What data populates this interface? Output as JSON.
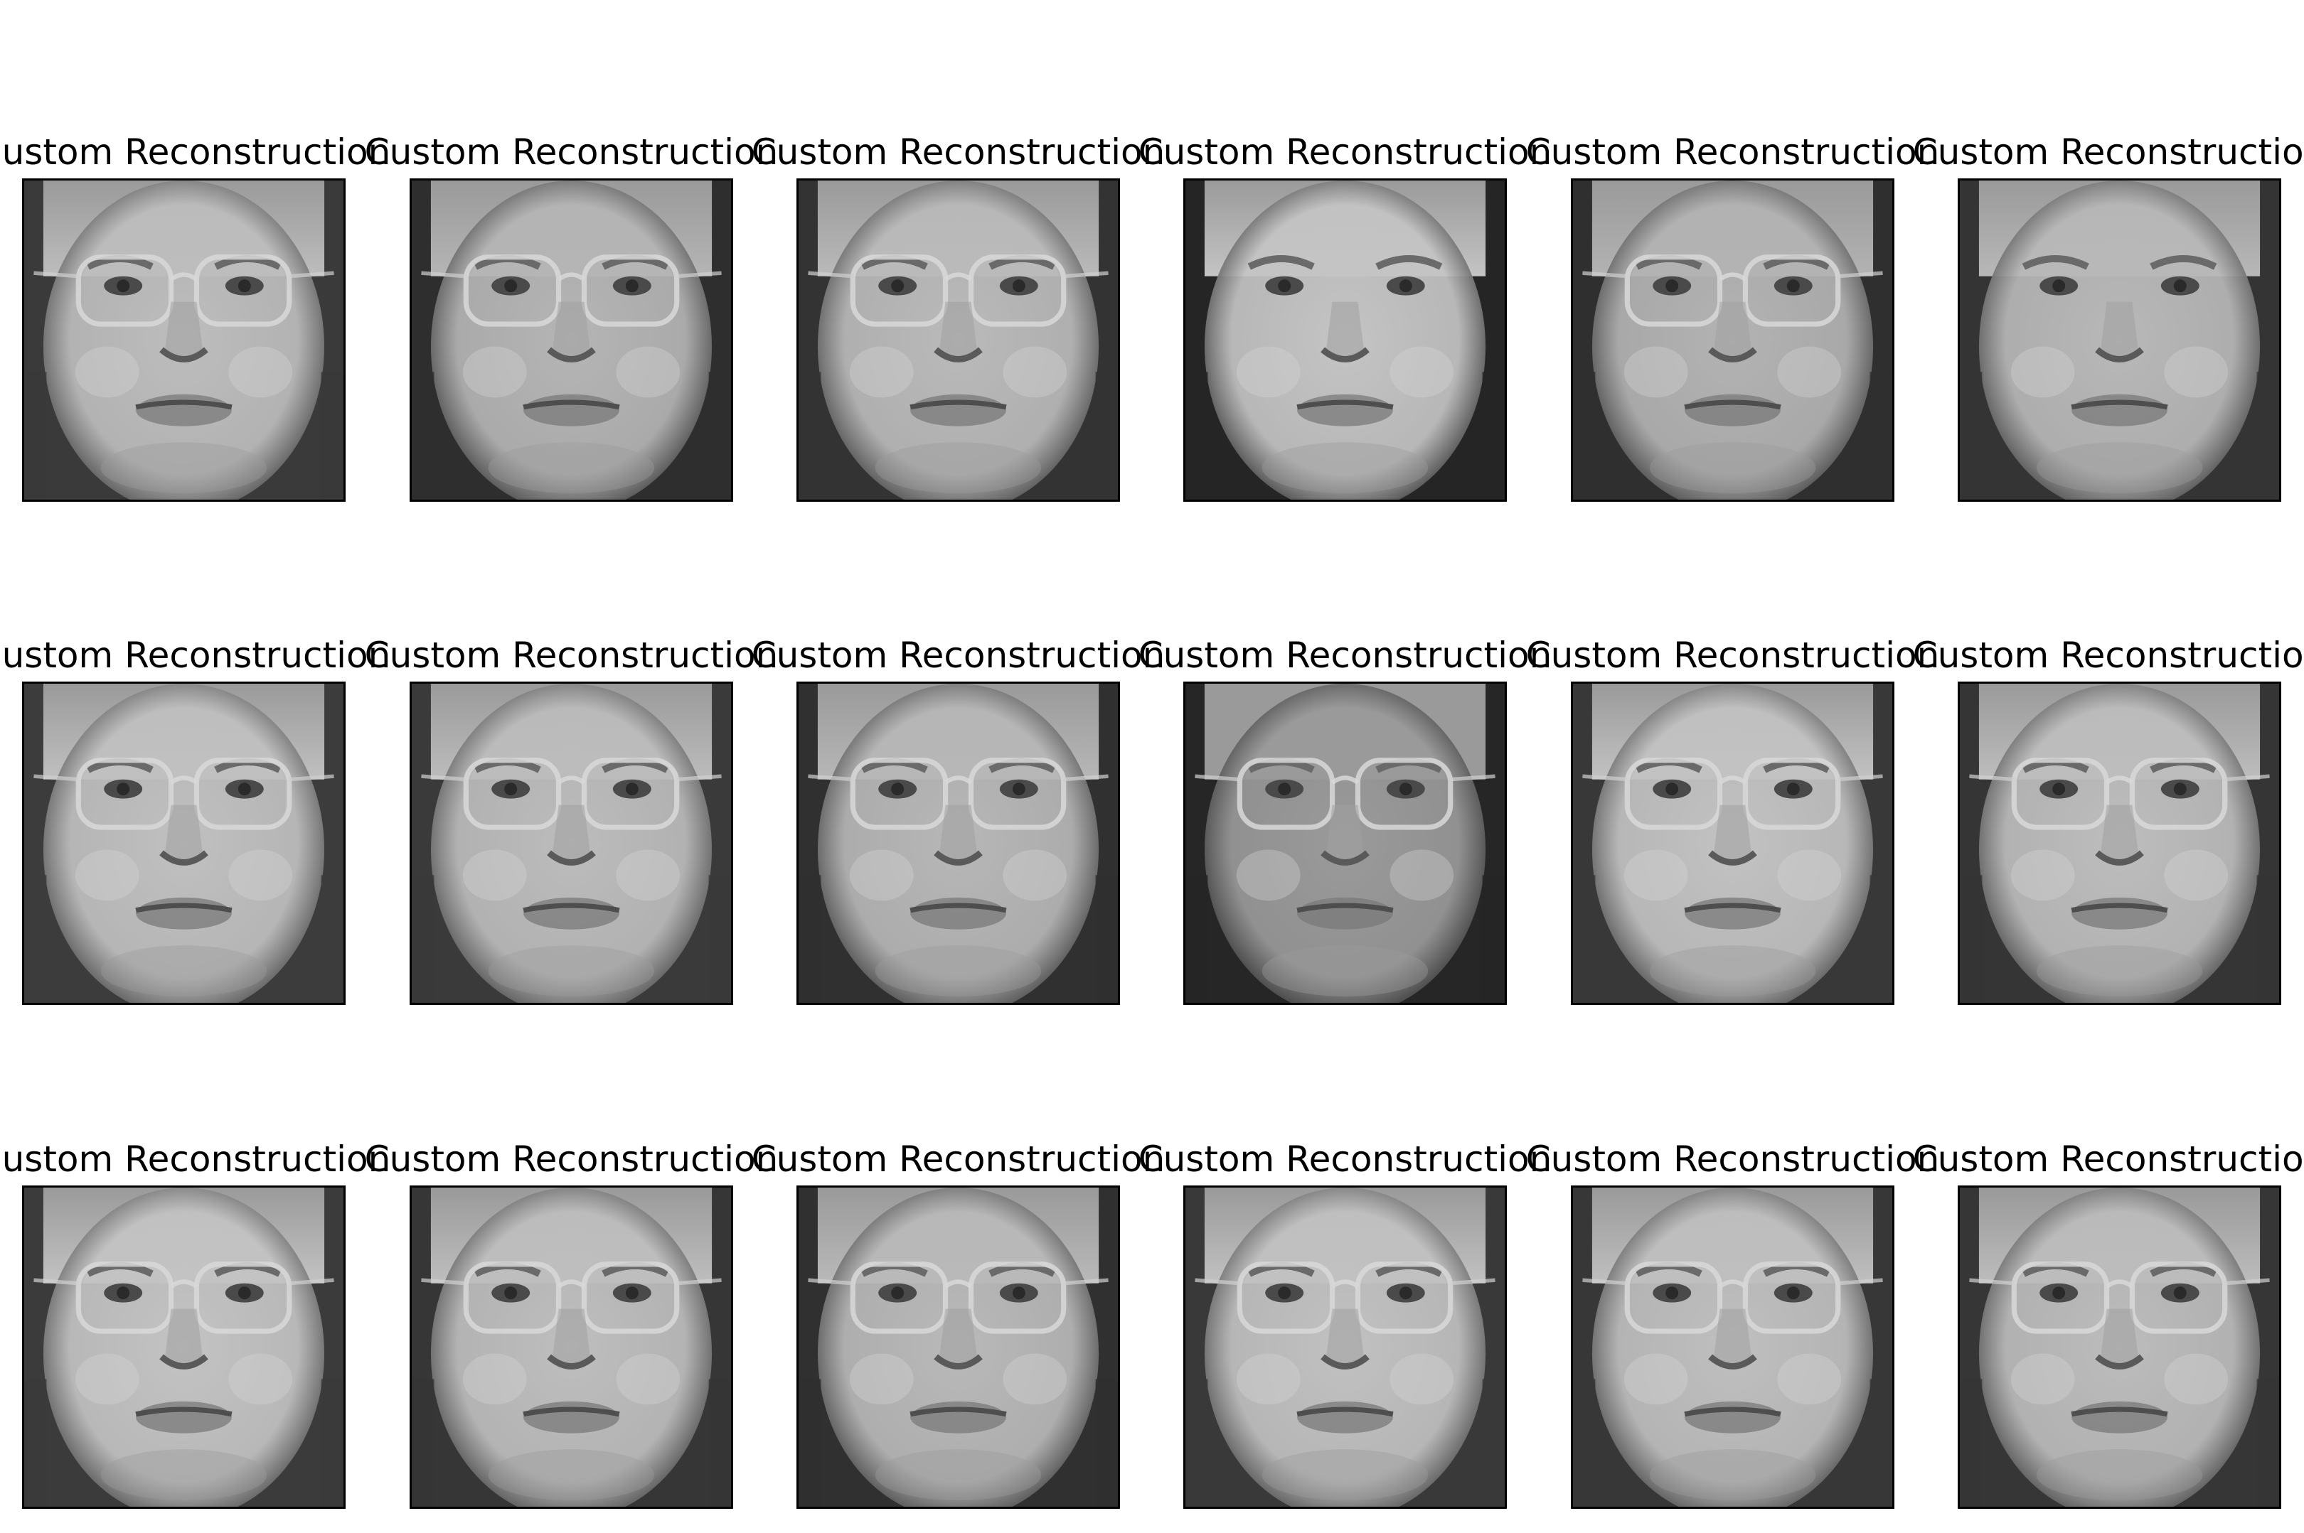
{
  "figure": {
    "panels": [
      {
        "title": "Custom Reconstruction",
        "face": "face-with-glasses",
        "glasses": true,
        "bg": "#3a3a3a",
        "skin": "#bdbdbd"
      },
      {
        "title": "Custom Reconstruction",
        "face": "face-with-glasses",
        "glasses": true,
        "bg": "#2e2e2e",
        "skin": "#b5b5b5"
      },
      {
        "title": "Custom Reconstruction",
        "face": "face-with-glasses",
        "glasses": true,
        "bg": "#333333",
        "skin": "#bababa"
      },
      {
        "title": "Custom Reconstruction",
        "face": "face-no-glasses",
        "glasses": false,
        "bg": "#252525",
        "skin": "#c4c4c4"
      },
      {
        "title": "Custom Reconstruction",
        "face": "face-with-glasses",
        "glasses": true,
        "bg": "#2f2f2f",
        "skin": "#b3b3b3"
      },
      {
        "title": "Custom Reconstruction",
        "face": "face-no-glasses",
        "glasses": false,
        "bg": "#343434",
        "skin": "#b8b8b8"
      },
      {
        "title": "Custom Reconstruction",
        "face": "face-with-glasses",
        "glasses": true,
        "bg": "#3c3c3c",
        "skin": "#c0c0c0"
      },
      {
        "title": "Custom Reconstruction",
        "face": "face-with-glasses",
        "glasses": true,
        "bg": "#3a3a3a",
        "skin": "#bcbcbc"
      },
      {
        "title": "Custom Reconstruction",
        "face": "face-with-glasses",
        "glasses": true,
        "bg": "#303030",
        "skin": "#b7b7b7"
      },
      {
        "title": "Custom Reconstruction",
        "face": "face-with-glasses",
        "glasses": true,
        "bg": "#262626",
        "skin": "#9a9a9a"
      },
      {
        "title": "Custom Reconstruction",
        "face": "face-with-glasses",
        "glasses": true,
        "bg": "#383838",
        "skin": "#c2c2c2"
      },
      {
        "title": "Custom Reconstruction",
        "face": "face-with-glasses",
        "glasses": true,
        "bg": "#353535",
        "skin": "#bdbdbd"
      },
      {
        "title": "Custom Reconstruction",
        "face": "face-with-glasses",
        "glasses": true,
        "bg": "#3b3b3b",
        "skin": "#c3c3c3"
      },
      {
        "title": "Custom Reconstruction",
        "face": "face-with-glasses",
        "glasses": true,
        "bg": "#363636",
        "skin": "#bebebe"
      },
      {
        "title": "Custom Reconstruction",
        "face": "face-with-glasses",
        "glasses": true,
        "bg": "#303030",
        "skin": "#b9b9b9"
      },
      {
        "title": "Custom Reconstruction",
        "face": "face-with-glasses",
        "glasses": true,
        "bg": "#393939",
        "skin": "#c1c1c1"
      },
      {
        "title": "Custom Reconstruction",
        "face": "face-with-glasses",
        "glasses": true,
        "bg": "#373737",
        "skin": "#bfbfbf"
      },
      {
        "title": "Custom Reconstruction",
        "face": "face-with-glasses",
        "glasses": true,
        "bg": "#363636",
        "skin": "#bcbcbc"
      }
    ]
  }
}
